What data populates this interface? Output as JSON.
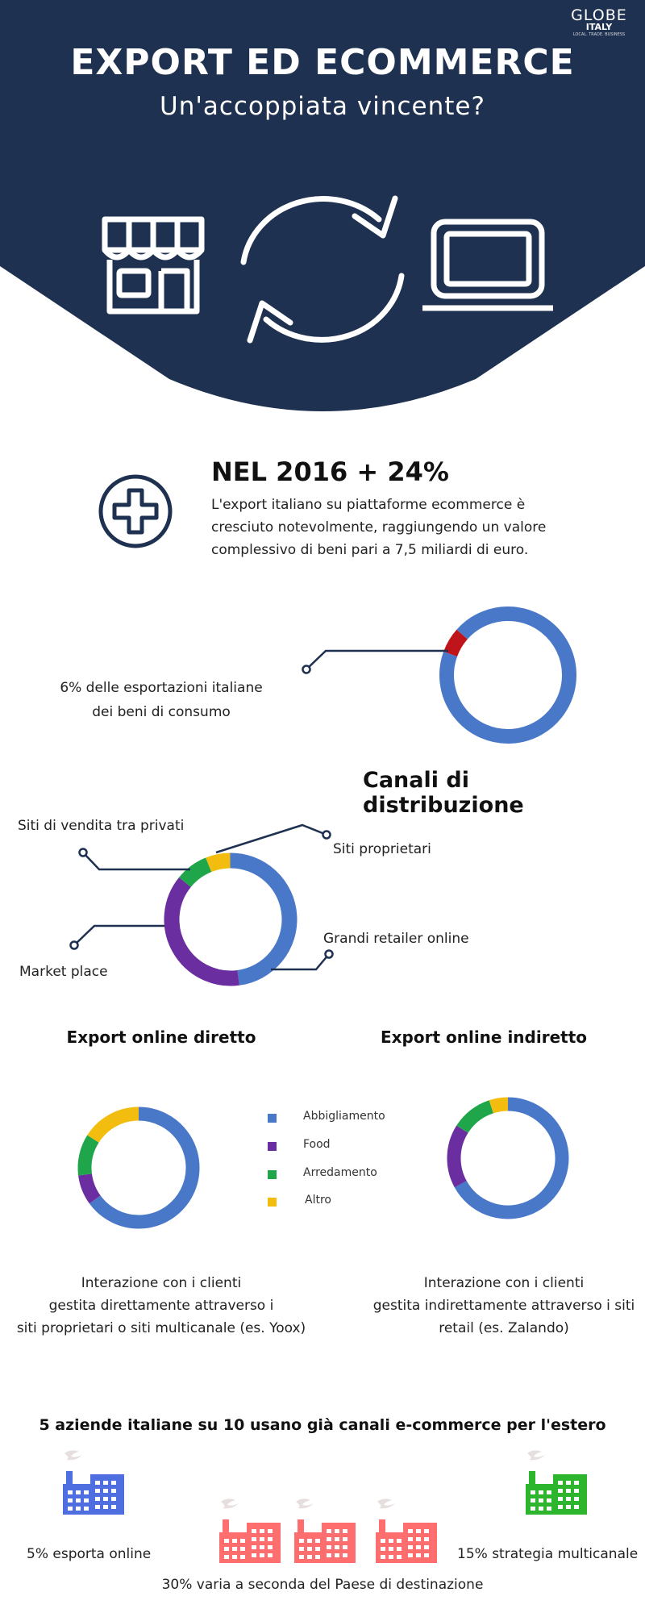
{
  "header": {
    "title": "EXPORT ED ECOMMERCE",
    "subtitle": "Un'accoppiata vincente?",
    "logo_main": "GLOBE",
    "logo_sub": "ITALY",
    "logo_tagline": "LOCAL. TRADE. BUSINESS",
    "icons": [
      "store-icon",
      "sync-arrows-icon",
      "laptop-icon"
    ]
  },
  "stat": {
    "title": "NEL 2016 + 24%",
    "text": "L'export italiano su piattaforme ecommerce è cresciuto notevolmente, raggiungendo un valore complessivo di beni pari a 7,5 miliardi di euro.",
    "icon": "plus-circle-icon"
  },
  "share": {
    "label_line1": "6% delle esportazioni italiane",
    "label_line2": "dei beni di consumo"
  },
  "channels": {
    "title": "Canali di distribuzione",
    "labels": {
      "privati": "Siti di vendita tra privati",
      "proprietari": "Siti proprietari",
      "marketplace": "Market place",
      "retailer": "Grandi retailer online"
    }
  },
  "export": {
    "direct_title": "Export online diretto",
    "indirect_title": "Export online indiretto",
    "direct_caption": [
      "Interazione con i clienti",
      "gestita direttamente attraverso i",
      "siti proprietari o siti multicanale (es. Yoox)"
    ],
    "indirect_caption": [
      "Interazione con i clienti",
      "gestita indirettamente attraverso i siti",
      "retail (es. Zalando)"
    ],
    "legend": [
      "Abbigliamento",
      "Food",
      "Arredamento",
      "Altro"
    ]
  },
  "companies": {
    "title": "5 aziende italiane su 10 usano già canali e-commerce per l'estero",
    "export_online": "5% esporta online",
    "multichannel": "15% strategia multicanale",
    "varies": "30% varia a seconda del Paese di destinazione",
    "icon": "factory-icon"
  },
  "colors": {
    "navy": "#1f3150",
    "blue": "#4a78c9",
    "red": "#c0141b",
    "purple": "#6a2ea0",
    "green": "#1fa64a",
    "yellow": "#f2bd0e",
    "factory_blue": "#4f6fe0",
    "factory_red": "#ff6e6e",
    "factory_green": "#2db52d",
    "smoke": "#e7dede"
  },
  "chart_data": [
    {
      "type": "pie",
      "name": "share",
      "categories": [
        "Ecommerce export",
        "Altro"
      ],
      "values": [
        6,
        94
      ]
    },
    {
      "type": "pie",
      "name": "channels",
      "categories": [
        "Siti proprietari",
        "Grandi retailer online",
        "Market place",
        "Siti di vendita tra privati"
      ],
      "values": [
        6,
        48,
        38,
        8
      ]
    },
    {
      "type": "pie",
      "name": "direct",
      "categories": [
        "Abbigliamento",
        "Food",
        "Arredamento",
        "Altro"
      ],
      "values": [
        65,
        8,
        11,
        16
      ]
    },
    {
      "type": "pie",
      "name": "indirect",
      "categories": [
        "Abbigliamento",
        "Food",
        "Arredamento",
        "Altro"
      ],
      "values": [
        67,
        17,
        11,
        5
      ]
    }
  ]
}
